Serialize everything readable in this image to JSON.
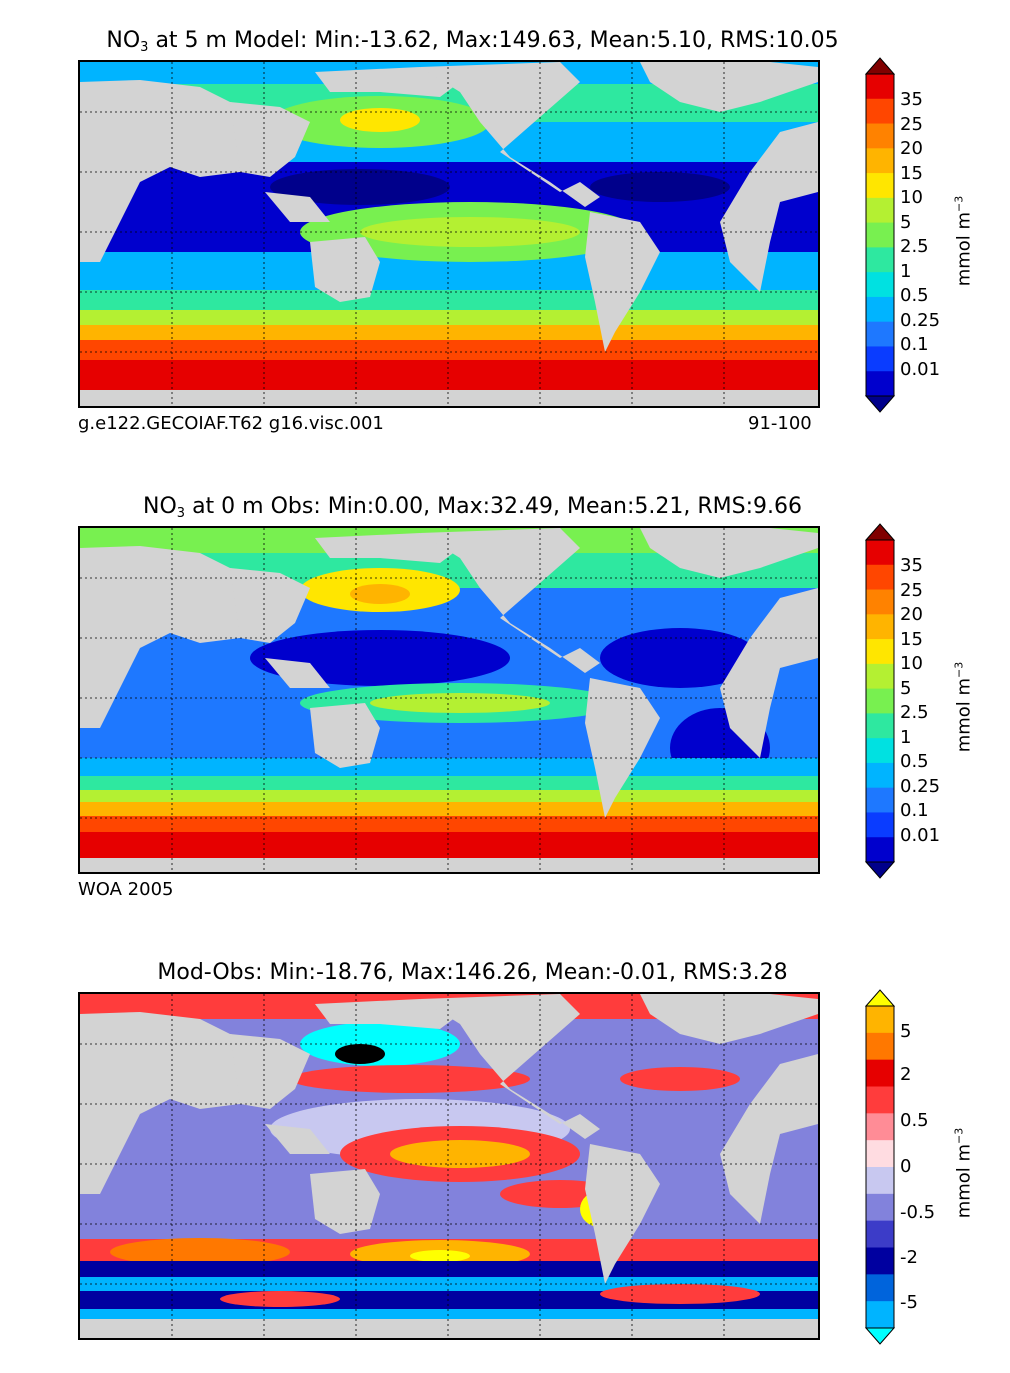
{
  "panels": [
    {
      "title_prefix": "NO",
      "title_sub": "3",
      "title_rest": " at 5 m Model: Min:-13.62, Max:149.63, Mean:5.10, RMS:10.05",
      "caption_left": "g.e122.GECOIAF.T62 g16.visc.001",
      "caption_right": "91-100",
      "colorbar_ticks": [
        "35",
        "25",
        "20",
        "15",
        "10",
        "5",
        "2.5",
        "1",
        "0.5",
        "0.25",
        "0.1",
        "0.01"
      ],
      "units": "mmol m",
      "units_exp": "−3"
    },
    {
      "title_prefix": "NO",
      "title_sub": "3",
      "title_rest": " at 0 m Obs: Min:0.00, Max:32.49, Mean:5.21, RMS:9.66",
      "caption_left": "WOA 2005",
      "colorbar_ticks": [
        "35",
        "25",
        "20",
        "15",
        "10",
        "5",
        "2.5",
        "1",
        "0.5",
        "0.25",
        "0.1",
        "0.01"
      ],
      "units": "mmol m",
      "units_exp": "−3"
    },
    {
      "title_rest": "Mod-Obs: Min:-18.76, Max:146.26, Mean:-0.01, RMS:3.28",
      "colorbar_ticks": [
        "5",
        "2",
        "0.5",
        "0",
        "-0.5",
        "-2",
        "-5"
      ],
      "units": "mmol m",
      "units_exp": "−3"
    }
  ],
  "colors": {
    "land": "#d3d3d3",
    "seq": [
      "#00008b",
      "#0000cd",
      "#0a3cff",
      "#1e78ff",
      "#00b4ff",
      "#00e1e1",
      "#2ee8a0",
      "#78f050",
      "#b4f032",
      "#ffe600",
      "#ffb400",
      "#ff8200",
      "#ff4600",
      "#e60000",
      "#800000"
    ],
    "diff": [
      "#00ffff",
      "#00b4ff",
      "#0064dc",
      "#0000a0",
      "#3c3cc8",
      "#8282dc",
      "#c8c8f0",
      "#ffdce1",
      "#ff8c96",
      "#ff3c3c",
      "#e60000",
      "#ff7800",
      "#ffb400",
      "#ffff00"
    ]
  }
}
